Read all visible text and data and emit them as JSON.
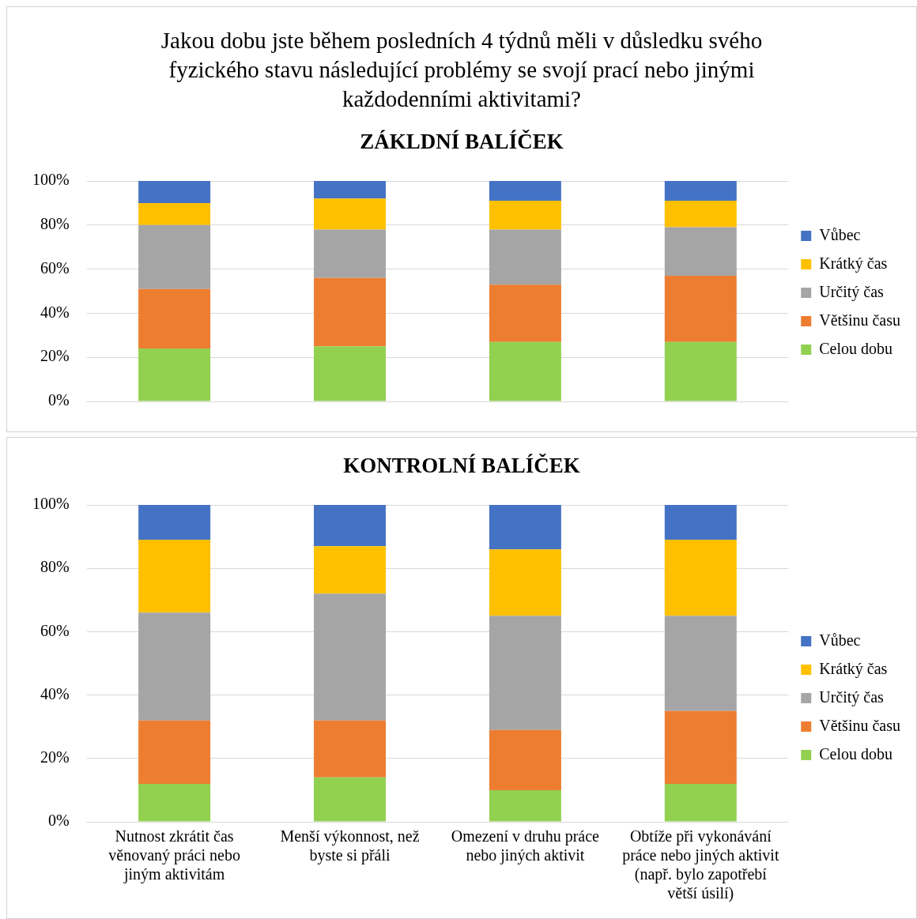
{
  "chart_data": [
    {
      "type": "bar",
      "title": "Jakou dobu jste během posledních 4 týdnů měli v důsledku svého fyzického stavu následující problémy se svojí prací nebo jinými každodenními aktivitami?",
      "subtitle": "ZÁKLDNÍ BALÍČEK",
      "categories": [
        null,
        null,
        null,
        null
      ],
      "stacked": true,
      "series": [
        {
          "name": "Celou dobu",
          "color": "#92d050",
          "values": [
            24,
            25,
            27,
            27
          ]
        },
        {
          "name": "Většinu času",
          "color": "#ed7d31",
          "values": [
            27,
            31,
            26,
            30
          ]
        },
        {
          "name": "Určitý čas",
          "color": "#a5a5a5",
          "values": [
            29,
            22,
            25,
            22
          ]
        },
        {
          "name": "Krátký čas",
          "color": "#ffc000",
          "values": [
            10,
            14,
            13,
            12
          ]
        },
        {
          "name": "Vůbec",
          "color": "#4472c4",
          "values": [
            10,
            8,
            9,
            9
          ]
        }
      ],
      "ylim": [
        0,
        100
      ],
      "yticks": [
        {
          "value": 0,
          "label": "0%"
        },
        {
          "value": 20,
          "label": "20%"
        },
        {
          "value": 40,
          "label": "40%"
        },
        {
          "value": 60,
          "label": "60%"
        },
        {
          "value": 80,
          "label": "80%"
        },
        {
          "value": 100,
          "label": "100%"
        }
      ],
      "grid": "y",
      "legend": "right",
      "tick_labels": "y"
    },
    {
      "type": "bar",
      "title": "KONTROLNÍ BALÍČEK",
      "categories": [
        "Nutnost zkrátit čas věnovaný práci nebo jiným aktivitám",
        "Menší výkonnost, než byste si přáli",
        "Omezení v druhu práce nebo jiných aktivit",
        "Obtíže při vykonávání práce nebo jiných aktivit (např. bylo zapotřebí větší úsilí)"
      ],
      "stacked": true,
      "series": [
        {
          "name": "Celou dobu",
          "color": "#92d050",
          "values": [
            12,
            14,
            10,
            12
          ]
        },
        {
          "name": "Většinu času",
          "color": "#ed7d31",
          "values": [
            20,
            18,
            19,
            23
          ]
        },
        {
          "name": "Určitý čas",
          "color": "#a5a5a5",
          "values": [
            34,
            40,
            36,
            30
          ]
        },
        {
          "name": "Krátký čas",
          "color": "#ffc000",
          "values": [
            23,
            15,
            21,
            24
          ]
        },
        {
          "name": "Vůbec",
          "color": "#4472c4",
          "values": [
            11,
            13,
            14,
            11
          ]
        }
      ],
      "ylim": [
        0,
        100
      ],
      "yticks": [
        {
          "value": 0,
          "label": "0%"
        },
        {
          "value": 20,
          "label": "20%"
        },
        {
          "value": 40,
          "label": "40%"
        },
        {
          "value": 60,
          "label": "60%"
        },
        {
          "value": 80,
          "label": "80%"
        },
        {
          "value": 100,
          "label": "100%"
        }
      ],
      "grid": "y",
      "legend": "right"
    }
  ]
}
